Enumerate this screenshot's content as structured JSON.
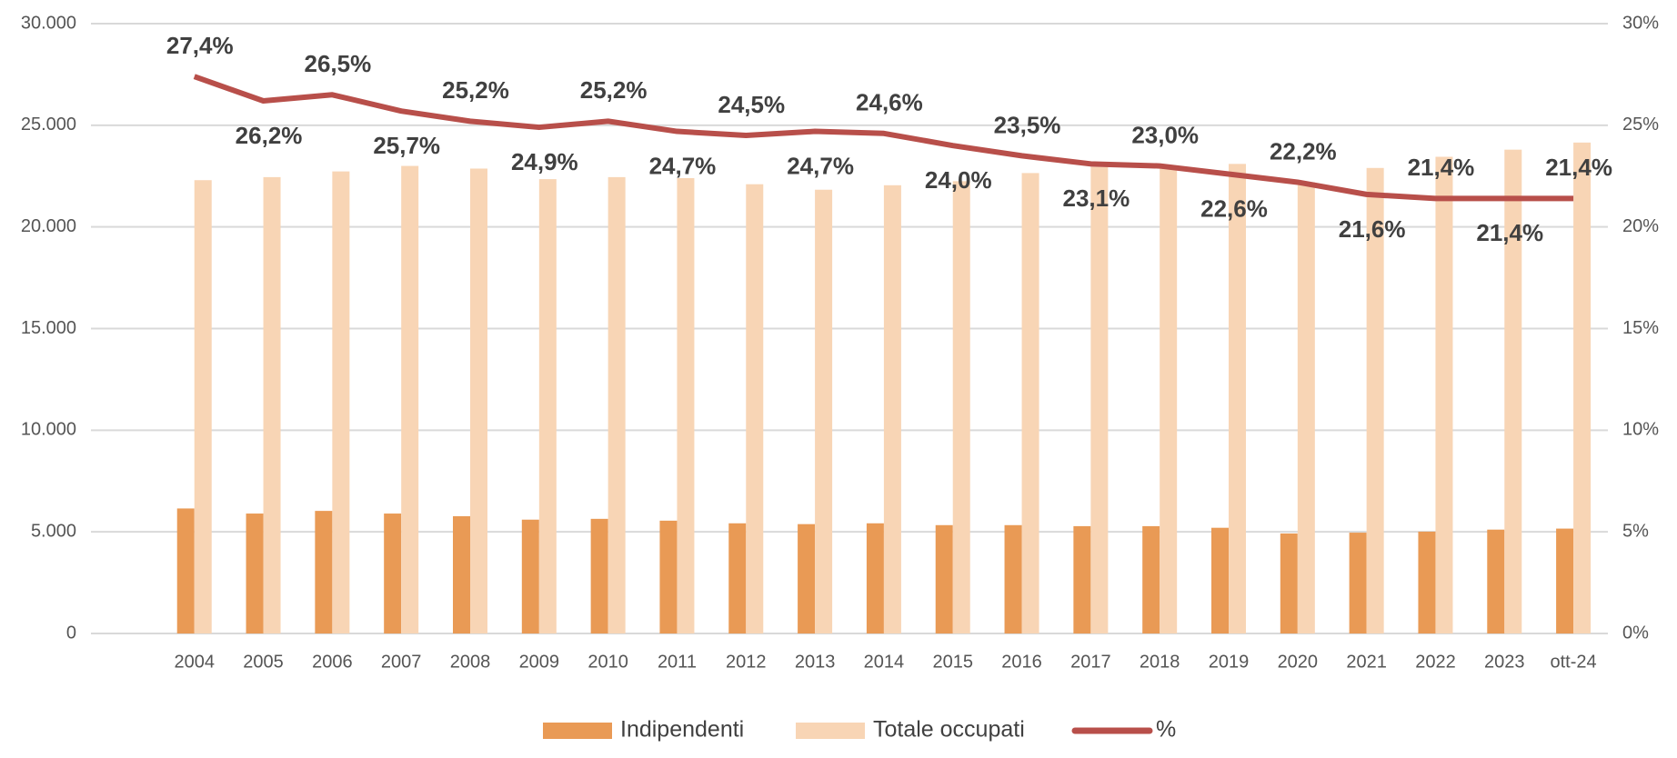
{
  "chart_data": {
    "type": "bar-line",
    "categories": [
      null,
      "2004",
      "2005",
      "2006",
      "2007",
      "2008",
      "2009",
      "2010",
      "2011",
      "2012",
      "2013",
      "2014",
      "2015",
      "2016",
      "2017",
      "2018",
      "2019",
      "2020",
      "2021",
      "2022",
      "2023",
      "ott-24"
    ],
    "series": [
      {
        "name": "Indipendenti",
        "type": "bar",
        "color": "#e99a55",
        "values": [
          null,
          6150,
          5900,
          6030,
          5900,
          5770,
          5600,
          5640,
          5550,
          5420,
          5380,
          5420,
          5330,
          5330,
          5280,
          5280,
          5200,
          4920,
          4960,
          5010,
          5110,
          5160
        ]
      },
      {
        "name": "Totale occupati",
        "type": "bar",
        "color": "#f8d5b5",
        "values": [
          null,
          22300,
          22450,
          22730,
          23000,
          22870,
          22350,
          22450,
          22400,
          22100,
          21830,
          22050,
          22250,
          22650,
          22950,
          23000,
          23100,
          22200,
          22900,
          23450,
          23800,
          24150
        ]
      },
      {
        "name": "%",
        "type": "line",
        "axis": "y2",
        "color": "#b84f4a",
        "values": [
          null,
          27.4,
          26.2,
          26.5,
          25.7,
          25.2,
          24.9,
          25.2,
          24.7,
          24.5,
          24.7,
          24.6,
          24.0,
          23.5,
          23.1,
          23.0,
          22.6,
          22.2,
          21.6,
          21.4,
          21.4,
          21.4
        ],
        "value_labels": [
          null,
          "27,4%",
          "26,2%",
          "26,5%",
          "25,7%",
          "25,2%",
          "24,9%",
          "25,2%",
          "24,7%",
          "24,5%",
          "24,7%",
          "24,6%",
          "24,0%",
          "23,5%",
          "23,1%",
          "23,0%",
          "22,6%",
          "22,2%",
          "21,6%",
          "21,4%",
          "21,4%",
          "21,4%"
        ]
      }
    ],
    "ylim": [
      0,
      30000
    ],
    "yticks": [
      {
        "value": 0,
        "label": "0"
      },
      {
        "value": 5000,
        "label": "5.000"
      },
      {
        "value": 10000,
        "label": "10.000"
      },
      {
        "value": 15000,
        "label": "15.000"
      },
      {
        "value": 20000,
        "label": "20.000"
      },
      {
        "value": 25000,
        "label": "25.000"
      },
      {
        "value": 30000,
        "label": "30.000"
      }
    ],
    "y2lim": [
      0,
      30
    ],
    "y2ticks": [
      {
        "value": 0,
        "label": "0%"
      },
      {
        "value": 5,
        "label": "5%"
      },
      {
        "value": 10,
        "label": "10%"
      },
      {
        "value": 15,
        "label": "15%"
      },
      {
        "value": 20,
        "label": "20%"
      },
      {
        "value": 25,
        "label": "25%"
      },
      {
        "value": 30,
        "label": "30%"
      }
    ],
    "grid": true,
    "legend": "bottom"
  }
}
